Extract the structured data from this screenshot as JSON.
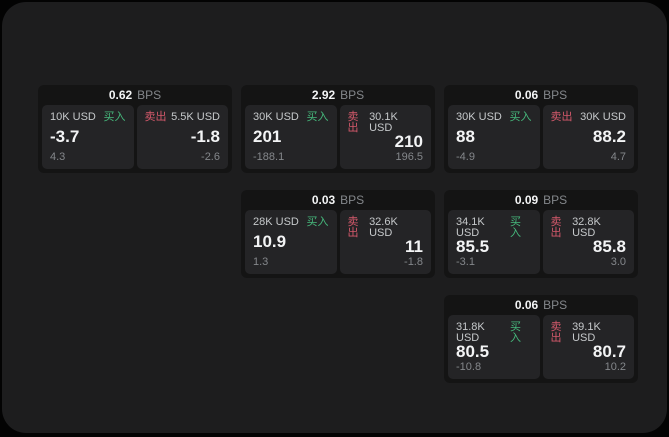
{
  "colors": {
    "page_bg": "#030303",
    "panel_bg": "#1d1d1e",
    "card_bg": "#141414",
    "tile_bg": "#242426",
    "buy_green": "#46b97c",
    "sell_red": "#d4596b",
    "text_primary": "#f3f4f5",
    "text_secondary": "#c6c9cb",
    "text_muted": "#84878b"
  },
  "labels": {
    "bps_unit": "BPS",
    "buy": "买入",
    "sell": "卖出"
  },
  "cards": [
    {
      "bps": "0.62",
      "row": 1,
      "col": 1,
      "buy": {
        "amount": "10K USD",
        "price": "-3.7",
        "change": "4.3"
      },
      "sell": {
        "amount": "5.5K USD",
        "price": "-1.8",
        "change": "-2.6"
      }
    },
    {
      "bps": "2.92",
      "row": 1,
      "col": 2,
      "buy": {
        "amount": "30K USD",
        "price": "201",
        "change": "-188.1"
      },
      "sell": {
        "amount": "30.1K USD",
        "price": "210",
        "change": "196.5"
      }
    },
    {
      "bps": "0.06",
      "row": 1,
      "col": 3,
      "buy": {
        "amount": "30K USD",
        "price": "88",
        "change": "-4.9"
      },
      "sell": {
        "amount": "30K USD",
        "price": "88.2",
        "change": "4.7"
      }
    },
    {
      "bps": "0.03",
      "row": 2,
      "col": 2,
      "buy": {
        "amount": "28K USD",
        "price": "10.9",
        "change": "1.3"
      },
      "sell": {
        "amount": "32.6K USD",
        "price": "11",
        "change": "-1.8"
      }
    },
    {
      "bps": "0.09",
      "row": 2,
      "col": 3,
      "buy": {
        "amount": "34.1K USD",
        "price": "85.5",
        "change": "-3.1"
      },
      "sell": {
        "amount": "32.8K USD",
        "price": "85.8",
        "change": "3.0"
      }
    },
    {
      "bps": "0.06",
      "row": 3,
      "col": 3,
      "buy": {
        "amount": "31.8K USD",
        "price": "80.5",
        "change": "-10.8"
      },
      "sell": {
        "amount": "39.1K USD",
        "price": "80.7",
        "change": "10.2"
      }
    }
  ]
}
